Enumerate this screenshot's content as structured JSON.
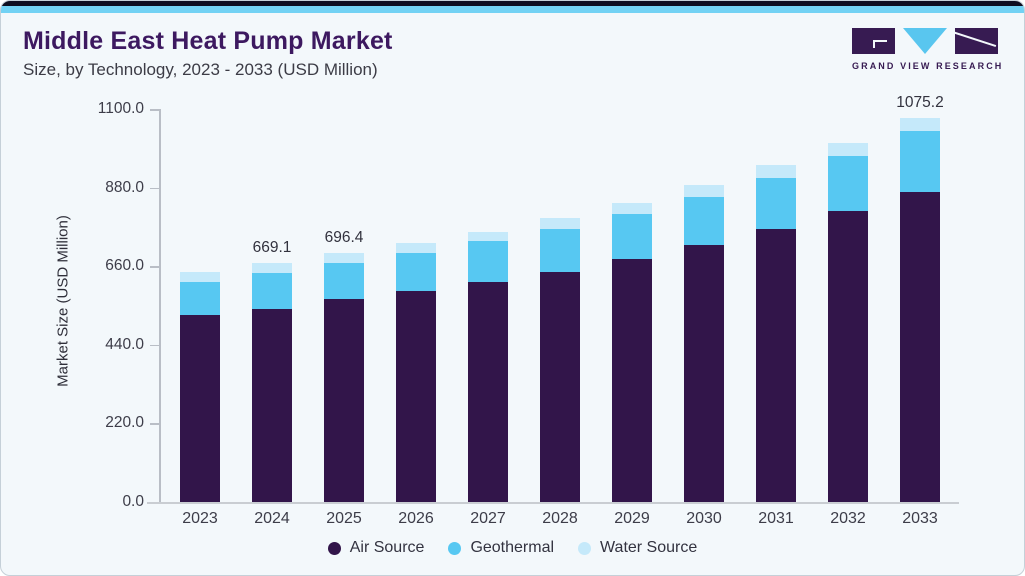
{
  "header": {
    "title": "Middle East Heat Pump Market",
    "subtitle": "Size, by Technology, 2023 - 2033 (USD Million)"
  },
  "logo": {
    "brand": "GRAND VIEW RESEARCH"
  },
  "chart_data": {
    "type": "bar",
    "stacked": true,
    "title": "Middle East Heat Pump Market Size, by Technology, 2023 - 2033 (USD Million)",
    "xlabel": "",
    "ylabel": "Market Size (USD Million)",
    "ylim": [
      0,
      1100
    ],
    "yticks": [
      0,
      220,
      440,
      660,
      880,
      1100
    ],
    "ytick_labels": [
      "0.0",
      "220.0",
      "440.0",
      "660.0",
      "880.0",
      "1100.0"
    ],
    "grid": false,
    "legend_position": "bottom",
    "categories": [
      "2023",
      "2024",
      "2025",
      "2026",
      "2027",
      "2028",
      "2029",
      "2030",
      "2031",
      "2032",
      "2033"
    ],
    "series": [
      {
        "name": "Air Source",
        "color": "#32154a",
        "values": [
          524.0,
          540.5,
          569.1,
          591.0,
          615.0,
          644.0,
          679.5,
          720.3,
          764.0,
          815.4,
          869.6
        ]
      },
      {
        "name": "Geothermal",
        "color": "#57c8f2",
        "values": [
          92.5,
          99.9,
          100.0,
          106.4,
          115.3,
          122.0,
          127.3,
          134.2,
          144.7,
          152.4,
          170.6
        ]
      },
      {
        "name": "Water Source",
        "color": "#c5e9fa",
        "values": [
          26.5,
          28.7,
          27.3,
          28.6,
          26.3,
          30.6,
          31.5,
          34.2,
          35.1,
          38.8,
          35.0
        ]
      }
    ],
    "total_labels": {
      "2024": "669.1",
      "2025": "696.4",
      "2033": "1075.2"
    }
  },
  "colors": {
    "card_background": "#f3f8fb",
    "top_band_dark": "#0e0e20",
    "top_band_blue": "#72d2f4",
    "title_purple": "#3d1960",
    "axis_line": "#b9bec6"
  }
}
